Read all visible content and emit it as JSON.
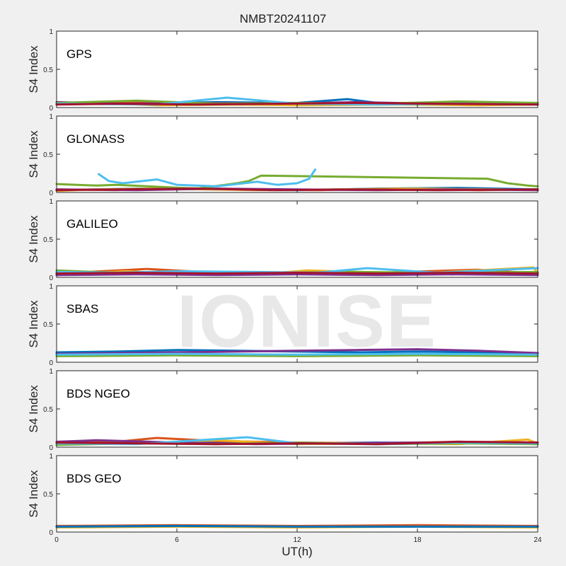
{
  "figure": {
    "title": "NMBT20241107",
    "xlabel": "UT(h)",
    "watermark": "IONISE"
  },
  "chart_data": [
    {
      "type": "line",
      "label": "GPS",
      "ylabel": "S4 Index",
      "xlim": [
        0,
        24
      ],
      "ylim": [
        0,
        1
      ],
      "xticks": [
        0,
        6,
        12,
        18,
        24
      ],
      "yticks": [
        0,
        0.5,
        1
      ],
      "grid": false,
      "series": [
        {
          "color": "#0072BD",
          "x": [
            0,
            4,
            8,
            12,
            14.5,
            16,
            20,
            24
          ],
          "y": [
            0.06,
            0.05,
            0.07,
            0.06,
            0.11,
            0.06,
            0.05,
            0.05
          ]
        },
        {
          "color": "#D95319",
          "x": [
            0,
            3,
            6,
            10,
            13,
            18,
            22,
            24
          ],
          "y": [
            0.05,
            0.08,
            0.04,
            0.05,
            0.04,
            0.05,
            0.04,
            0.05
          ]
        },
        {
          "color": "#EDB120",
          "x": [
            0,
            2,
            5,
            9,
            12,
            17,
            21,
            24
          ],
          "y": [
            0.04,
            0.06,
            0.03,
            0.04,
            0.03,
            0.04,
            0.03,
            0.04
          ]
        },
        {
          "color": "#7E2F8E",
          "x": [
            0,
            3.5,
            7,
            11,
            15,
            19,
            24
          ],
          "y": [
            0.07,
            0.05,
            0.06,
            0.05,
            0.07,
            0.05,
            0.06
          ]
        },
        {
          "color": "#77AC30",
          "x": [
            0,
            4,
            8,
            12,
            16,
            20,
            24
          ],
          "y": [
            0.06,
            0.09,
            0.05,
            0.06,
            0.05,
            0.08,
            0.06
          ]
        },
        {
          "color": "#4DBEEE",
          "x": [
            0,
            5,
            8.5,
            12,
            16,
            20,
            24
          ],
          "y": [
            0.05,
            0.04,
            0.13,
            0.05,
            0.04,
            0.05,
            0.04
          ]
        },
        {
          "color": "#A2142F",
          "x": [
            0,
            3,
            7,
            11,
            15,
            19,
            24
          ],
          "y": [
            0.04,
            0.05,
            0.04,
            0.05,
            0.06,
            0.05,
            0.04
          ]
        }
      ]
    },
    {
      "type": "line",
      "label": "GLONASS",
      "ylabel": "S4 Index",
      "xlim": [
        0,
        24
      ],
      "ylim": [
        0,
        1
      ],
      "xticks": [
        0,
        6,
        12,
        18,
        24
      ],
      "yticks": [
        0,
        0.5,
        1
      ],
      "grid": false,
      "series": [
        {
          "color": "#0072BD",
          "x": [
            0,
            4,
            8,
            12,
            16,
            20,
            24
          ],
          "y": [
            0.03,
            0.05,
            0.04,
            0.03,
            0.05,
            0.06,
            0.04
          ]
        },
        {
          "color": "#D95319",
          "x": [
            0,
            3,
            6,
            9,
            13,
            17,
            21,
            24
          ],
          "y": [
            0.04,
            0.03,
            0.06,
            0.04,
            0.03,
            0.05,
            0.03,
            0.04
          ]
        },
        {
          "color": "#EDB120",
          "x": [
            0,
            2,
            5,
            10,
            14,
            18,
            22,
            24
          ],
          "y": [
            0.02,
            0.04,
            0.05,
            0.03,
            0.04,
            0.05,
            0.04,
            0.03
          ]
        },
        {
          "color": "#7E2F8E",
          "x": [
            0,
            4,
            8,
            12,
            16,
            20,
            24
          ],
          "y": [
            0.04,
            0.03,
            0.05,
            0.04,
            0.03,
            0.04,
            0.03
          ]
        },
        {
          "color": "#77AC30",
          "x": [
            0,
            1,
            2,
            3,
            7,
            9,
            9.6,
            10.2,
            21.5,
            22.5,
            23.5,
            24
          ],
          "y": [
            0.11,
            0.1,
            0.09,
            0.1,
            0.05,
            0.12,
            0.15,
            0.22,
            0.18,
            0.12,
            0.09,
            0.08
          ]
        },
        {
          "color": "#4DBEEE",
          "x": [
            2.1,
            2.6,
            3.3,
            5,
            6,
            8,
            9,
            10,
            11,
            12,
            12.6,
            12.9
          ],
          "y": [
            0.24,
            0.15,
            0.12,
            0.17,
            0.1,
            0.08,
            0.11,
            0.14,
            0.1,
            0.12,
            0.18,
            0.3
          ]
        },
        {
          "color": "#A2142F",
          "x": [
            0,
            3,
            7,
            11,
            15,
            19,
            24
          ],
          "y": [
            0.03,
            0.04,
            0.05,
            0.03,
            0.04,
            0.03,
            0.04
          ]
        }
      ]
    },
    {
      "type": "line",
      "label": "GALILEO",
      "ylabel": "S4 Index",
      "xlim": [
        0,
        24
      ],
      "ylim": [
        0,
        1
      ],
      "xticks": [
        0,
        6,
        12,
        18,
        24
      ],
      "yticks": [
        0,
        0.5,
        1
      ],
      "grid": false,
      "series": [
        {
          "color": "#0072BD",
          "x": [
            0,
            4,
            8,
            12,
            16,
            20,
            24
          ],
          "y": [
            0.06,
            0.07,
            0.05,
            0.06,
            0.05,
            0.07,
            0.06
          ]
        },
        {
          "color": "#D95319",
          "x": [
            0,
            4.5,
            8,
            12,
            16,
            21,
            24
          ],
          "y": [
            0.05,
            0.11,
            0.06,
            0.05,
            0.06,
            0.1,
            0.05
          ]
        },
        {
          "color": "#EDB120",
          "x": [
            0,
            3.5,
            6,
            10,
            12.5,
            18,
            23.8,
            24
          ],
          "y": [
            0.04,
            0.08,
            0.05,
            0.04,
            0.09,
            0.05,
            0.13,
            0.05
          ]
        },
        {
          "color": "#7E2F8E",
          "x": [
            0,
            4,
            8,
            12,
            16,
            20,
            24
          ],
          "y": [
            0.03,
            0.04,
            0.03,
            0.04,
            0.03,
            0.04,
            0.03
          ]
        },
        {
          "color": "#77AC30",
          "x": [
            0,
            3,
            7,
            11,
            15,
            19,
            24
          ],
          "y": [
            0.09,
            0.06,
            0.07,
            0.06,
            0.07,
            0.06,
            0.07
          ]
        },
        {
          "color": "#4DBEEE",
          "x": [
            0,
            3,
            6,
            10,
            13,
            15.5,
            19,
            24
          ],
          "y": [
            0.07,
            0.06,
            0.08,
            0.07,
            0.06,
            0.12,
            0.06,
            0.12
          ]
        },
        {
          "color": "#A2142F",
          "x": [
            0,
            4,
            8,
            12,
            16,
            20,
            24
          ],
          "y": [
            0.05,
            0.06,
            0.05,
            0.06,
            0.05,
            0.06,
            0.05
          ]
        }
      ]
    },
    {
      "type": "line",
      "label": "SBAS",
      "ylabel": "S4 Index",
      "xlim": [
        0,
        24
      ],
      "ylim": [
        0,
        1
      ],
      "xticks": [
        0,
        6,
        12,
        18,
        24
      ],
      "yticks": [
        0,
        0.5,
        1
      ],
      "grid": false,
      "series": [
        {
          "color": "#0072BD",
          "x": [
            0,
            3,
            6,
            9,
            12,
            15,
            18,
            21,
            24
          ],
          "y": [
            0.13,
            0.14,
            0.16,
            0.15,
            0.14,
            0.13,
            0.14,
            0.13,
            0.12
          ]
        },
        {
          "color": "#7E2F8E",
          "x": [
            0,
            3,
            6,
            9,
            12,
            15,
            18,
            21,
            24
          ],
          "y": [
            0.11,
            0.12,
            0.13,
            0.14,
            0.15,
            0.16,
            0.17,
            0.15,
            0.12
          ]
        },
        {
          "color": "#77AC30",
          "x": [
            0,
            6,
            12,
            18,
            24
          ],
          "y": [
            0.08,
            0.09,
            0.08,
            0.09,
            0.08
          ]
        },
        {
          "color": "#4DBEEE",
          "x": [
            0,
            6,
            12,
            18,
            24
          ],
          "y": [
            0.1,
            0.11,
            0.1,
            0.11,
            0.1
          ]
        }
      ]
    },
    {
      "type": "line",
      "label": "BDS NGEO",
      "ylabel": "S4 Index",
      "xlim": [
        0,
        24
      ],
      "ylim": [
        0,
        1
      ],
      "xticks": [
        0,
        6,
        12,
        18,
        24
      ],
      "yticks": [
        0,
        0.5,
        1
      ],
      "grid": false,
      "series": [
        {
          "color": "#0072BD",
          "x": [
            0,
            4,
            8,
            12,
            16,
            20,
            24
          ],
          "y": [
            0.05,
            0.06,
            0.07,
            0.05,
            0.06,
            0.05,
            0.06
          ]
        },
        {
          "color": "#D95319",
          "x": [
            0,
            3,
            5,
            8,
            12,
            16,
            20,
            24
          ],
          "y": [
            0.06,
            0.07,
            0.12,
            0.08,
            0.06,
            0.05,
            0.07,
            0.06
          ]
        },
        {
          "color": "#EDB120",
          "x": [
            0,
            4,
            8,
            12,
            16,
            20,
            23.5,
            24
          ],
          "y": [
            0.04,
            0.05,
            0.09,
            0.04,
            0.05,
            0.04,
            0.1,
            0.05
          ]
        },
        {
          "color": "#7E2F8E",
          "x": [
            0,
            2,
            6,
            10,
            14,
            18,
            22,
            24
          ],
          "y": [
            0.07,
            0.09,
            0.06,
            0.04,
            0.05,
            0.06,
            0.05,
            0.04
          ]
        },
        {
          "color": "#77AC30",
          "x": [
            0,
            4,
            8,
            12,
            16,
            20,
            24
          ],
          "y": [
            0.03,
            0.05,
            0.04,
            0.06,
            0.04,
            0.05,
            0.04
          ]
        },
        {
          "color": "#4DBEEE",
          "x": [
            0,
            4,
            9.5,
            12,
            16,
            20,
            24
          ],
          "y": [
            0.05,
            0.04,
            0.13,
            0.05,
            0.04,
            0.06,
            0.05
          ]
        },
        {
          "color": "#A2142F",
          "x": [
            0,
            4,
            8,
            12,
            16,
            20,
            24
          ],
          "y": [
            0.06,
            0.05,
            0.04,
            0.05,
            0.04,
            0.07,
            0.06
          ]
        }
      ]
    },
    {
      "type": "line",
      "label": "BDS GEO",
      "ylabel": "S4 Index",
      "xlim": [
        0,
        24
      ],
      "ylim": [
        0,
        1
      ],
      "xticks": [
        0,
        6,
        12,
        18,
        24
      ],
      "yticks": [
        0,
        0.5,
        1
      ],
      "grid": false,
      "series": [
        {
          "color": "#D95319",
          "x": [
            0,
            6,
            12,
            18,
            24
          ],
          "y": [
            0.08,
            0.09,
            0.08,
            0.09,
            0.08
          ]
        },
        {
          "color": "#EDB120",
          "x": [
            0,
            6,
            12,
            18,
            24
          ],
          "y": [
            0.06,
            0.07,
            0.06,
            0.07,
            0.06
          ]
        },
        {
          "color": "#0072BD",
          "x": [
            0,
            6,
            12,
            18,
            24
          ],
          "y": [
            0.07,
            0.08,
            0.07,
            0.07,
            0.07
          ]
        }
      ]
    }
  ]
}
